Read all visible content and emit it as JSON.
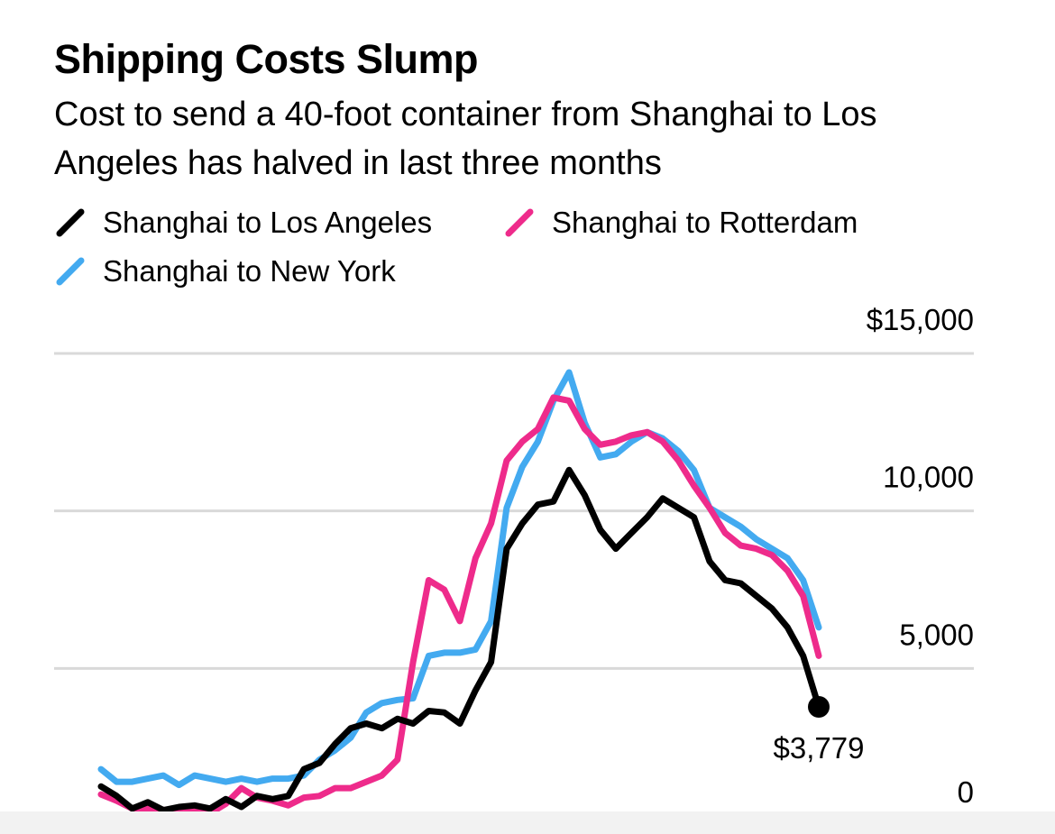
{
  "chart_data": {
    "type": "line",
    "title": "Shipping Costs Slump",
    "subtitle": "Cost to send a 40-foot container from Shanghai to Los Angeles has halved in last three months",
    "xlabel": "",
    "ylabel": "",
    "ylim": [
      0,
      15000
    ],
    "y_ticks": [
      {
        "value": 15000,
        "label": "$15,000"
      },
      {
        "value": 10000,
        "label": "10,000"
      },
      {
        "value": 5000,
        "label": "5,000"
      },
      {
        "value": 0,
        "label": "0"
      }
    ],
    "end_annotation": {
      "series": "Shanghai to Los Angeles",
      "value": 3779,
      "label": "$3,779"
    },
    "series": [
      {
        "name": "Shanghai to Los Angeles",
        "color": "#000000",
        "values": [
          1250,
          950,
          550,
          750,
          500,
          600,
          650,
          550,
          850,
          600,
          950,
          850,
          950,
          1800,
          2000,
          2600,
          3100,
          3250,
          3100,
          3400,
          3250,
          3650,
          3600,
          3250,
          4300,
          5200,
          8800,
          9600,
          10200,
          10300,
          11300,
          10500,
          9400,
          8800,
          9300,
          9800,
          10400,
          10100,
          9800,
          8400,
          7800,
          7700,
          7300,
          6900,
          6300,
          5400,
          3779
        ]
      },
      {
        "name": "Shanghai to Rotterdam",
        "color": "#ee2b8b",
        "values": [
          1000,
          800,
          550,
          550,
          500,
          550,
          450,
          400,
          700,
          1200,
          900,
          800,
          650,
          900,
          950,
          1200,
          1200,
          1400,
          1600,
          2100,
          5200,
          7800,
          7500,
          6500,
          8500,
          9600,
          11600,
          12200,
          12600,
          13600,
          13500,
          12600,
          12100,
          12200,
          12400,
          12500,
          12200,
          11600,
          10800,
          10100,
          9300,
          8900,
          8800,
          8600,
          8100,
          7300,
          5400
        ]
      },
      {
        "name": "Shanghai to New York",
        "color": "#43aaf0",
        "values": [
          1800,
          1400,
          1400,
          1500,
          1600,
          1300,
          1600,
          1500,
          1400,
          1500,
          1400,
          1500,
          1500,
          1600,
          2100,
          2400,
          2800,
          3600,
          3900,
          4000,
          4050,
          5400,
          5500,
          5500,
          5600,
          6500,
          10100,
          11400,
          12200,
          13500,
          14400,
          12800,
          11700,
          11800,
          12200,
          12500,
          12300,
          11900,
          11300,
          10100,
          9800,
          9500,
          9100,
          8800,
          8500,
          7800,
          6300
        ]
      }
    ]
  },
  "colors": {
    "gridline": "#d9d9d9",
    "footer_band": "#f2f2f2",
    "background": "#ffffff"
  }
}
